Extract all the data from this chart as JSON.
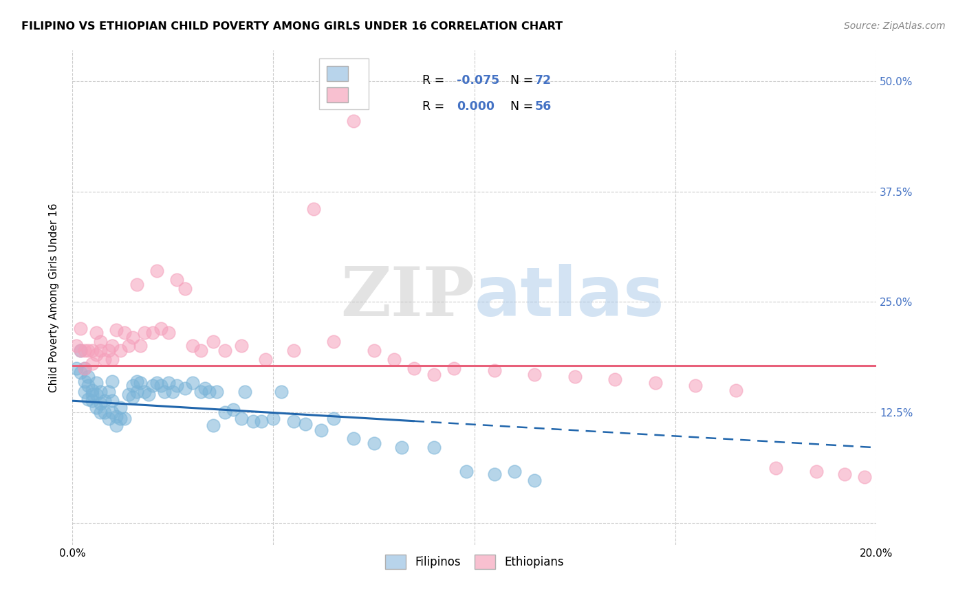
{
  "title": "FILIPINO VS ETHIOPIAN CHILD POVERTY AMONG GIRLS UNDER 16 CORRELATION CHART",
  "source": "Source: ZipAtlas.com",
  "ylabel": "Child Poverty Among Girls Under 16",
  "yticks": [
    0.0,
    0.125,
    0.25,
    0.375,
    0.5
  ],
  "ytick_labels": [
    "",
    "12.5%",
    "25.0%",
    "37.5%",
    "50.0%"
  ],
  "xlim": [
    0.0,
    0.2
  ],
  "ylim": [
    -0.025,
    0.535
  ],
  "watermark_zip": "ZIP",
  "watermark_atlas": "atlas",
  "filipino_color": "#7ab4d8",
  "ethiopian_color": "#f5a0bb",
  "filipino_trend_color": "#2166ac",
  "ethiopian_trend_color": "#e8607a",
  "background_color": "#ffffff",
  "grid_color": "#cccccc",
  "right_tick_color": "#4472c4",
  "filipinos_x": [
    0.001,
    0.002,
    0.002,
    0.003,
    0.003,
    0.003,
    0.004,
    0.004,
    0.004,
    0.005,
    0.005,
    0.005,
    0.006,
    0.006,
    0.006,
    0.007,
    0.007,
    0.007,
    0.008,
    0.008,
    0.009,
    0.009,
    0.01,
    0.01,
    0.01,
    0.011,
    0.011,
    0.012,
    0.012,
    0.013,
    0.014,
    0.015,
    0.015,
    0.016,
    0.016,
    0.017,
    0.018,
    0.019,
    0.02,
    0.021,
    0.022,
    0.023,
    0.024,
    0.025,
    0.026,
    0.028,
    0.03,
    0.032,
    0.033,
    0.034,
    0.035,
    0.036,
    0.038,
    0.04,
    0.042,
    0.043,
    0.045,
    0.047,
    0.05,
    0.052,
    0.055,
    0.058,
    0.062,
    0.065,
    0.07,
    0.075,
    0.082,
    0.09,
    0.098,
    0.105,
    0.11,
    0.115
  ],
  "filipinos_y": [
    0.175,
    0.17,
    0.195,
    0.16,
    0.148,
    0.175,
    0.155,
    0.14,
    0.165,
    0.15,
    0.138,
    0.145,
    0.158,
    0.13,
    0.145,
    0.148,
    0.135,
    0.125,
    0.138,
    0.125,
    0.148,
    0.118,
    0.16,
    0.138,
    0.125,
    0.12,
    0.11,
    0.13,
    0.118,
    0.118,
    0.145,
    0.155,
    0.142,
    0.16,
    0.148,
    0.158,
    0.148,
    0.145,
    0.155,
    0.158,
    0.155,
    0.148,
    0.158,
    0.148,
    0.155,
    0.152,
    0.158,
    0.148,
    0.152,
    0.148,
    0.11,
    0.148,
    0.125,
    0.128,
    0.118,
    0.148,
    0.115,
    0.115,
    0.118,
    0.148,
    0.115,
    0.112,
    0.105,
    0.118,
    0.095,
    0.09,
    0.085,
    0.085,
    0.058,
    0.055,
    0.058,
    0.048
  ],
  "ethiopians_x": [
    0.001,
    0.002,
    0.002,
    0.003,
    0.003,
    0.004,
    0.005,
    0.005,
    0.006,
    0.006,
    0.007,
    0.007,
    0.008,
    0.009,
    0.01,
    0.01,
    0.011,
    0.012,
    0.013,
    0.014,
    0.015,
    0.016,
    0.017,
    0.018,
    0.02,
    0.021,
    0.022,
    0.024,
    0.026,
    0.028,
    0.03,
    0.032,
    0.035,
    0.038,
    0.042,
    0.048,
    0.055,
    0.065,
    0.075,
    0.085,
    0.095,
    0.105,
    0.115,
    0.125,
    0.135,
    0.145,
    0.155,
    0.165,
    0.175,
    0.185,
    0.192,
    0.197,
    0.06,
    0.07,
    0.08,
    0.09
  ],
  "ethiopians_y": [
    0.2,
    0.195,
    0.22,
    0.175,
    0.195,
    0.195,
    0.195,
    0.18,
    0.215,
    0.19,
    0.195,
    0.205,
    0.185,
    0.195,
    0.185,
    0.2,
    0.218,
    0.195,
    0.215,
    0.2,
    0.21,
    0.27,
    0.2,
    0.215,
    0.215,
    0.285,
    0.22,
    0.215,
    0.275,
    0.265,
    0.2,
    0.195,
    0.205,
    0.195,
    0.2,
    0.185,
    0.195,
    0.205,
    0.195,
    0.175,
    0.175,
    0.172,
    0.168,
    0.165,
    0.162,
    0.158,
    0.155,
    0.15,
    0.062,
    0.058,
    0.055,
    0.052,
    0.355,
    0.455,
    0.185,
    0.168
  ],
  "fil_trend_x1": 0.0,
  "fil_trend_x2": 0.085,
  "fil_trend_x3": 0.2,
  "fil_trend_y1": 0.138,
  "fil_trend_y2": 0.115,
  "fil_trend_y3": 0.085,
  "eth_trend_x1": 0.0,
  "eth_trend_x2": 0.2,
  "eth_trend_y1": 0.178,
  "eth_trend_y2": 0.178
}
